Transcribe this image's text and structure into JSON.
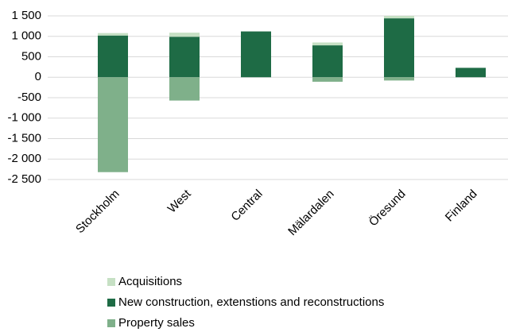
{
  "chart_data": {
    "type": "bar",
    "stacked": true,
    "categories": [
      "Stockholm",
      "West",
      "Central",
      "Mälardalen",
      "Öresund",
      "Finland"
    ],
    "series": [
      {
        "name": "Acquisitions",
        "color": "#c6e0c4",
        "values": [
          60,
          100,
          0,
          70,
          60,
          0
        ]
      },
      {
        "name": "New construction, extenstions and reconstructions",
        "color": "#1e6b45",
        "values": [
          1020,
          990,
          1120,
          780,
          1440,
          230
        ]
      },
      {
        "name": "Property sales",
        "color": "#7fb08a",
        "values": [
          -2320,
          -570,
          0,
          -110,
          -80,
          0
        ]
      }
    ],
    "ylim": [
      -2500,
      1500
    ],
    "yticks": [
      {
        "value": 1500,
        "label": "1 500"
      },
      {
        "value": 1000,
        "label": "1 000"
      },
      500,
      0,
      -500,
      {
        "value": -1000,
        "label": "-1 000"
      },
      {
        "value": -1500,
        "label": "-1 500"
      },
      {
        "value": -2000,
        "label": "-2 000"
      },
      {
        "value": -2500,
        "label": "-2 500"
      }
    ],
    "grid": true,
    "legend": "bottom"
  }
}
